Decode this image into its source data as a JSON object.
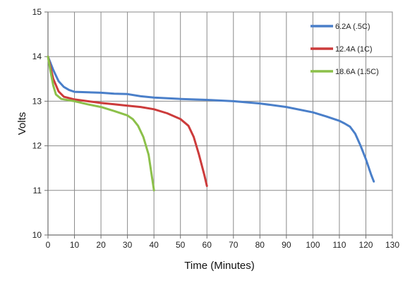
{
  "chart_data": {
    "type": "line",
    "title": "",
    "xlabel": "Time (Minutes)",
    "ylabel": "Volts",
    "xlim": [
      0,
      130
    ],
    "ylim": [
      10,
      15
    ],
    "x_ticks": [
      0,
      10,
      20,
      30,
      40,
      50,
      60,
      70,
      80,
      90,
      100,
      110,
      120,
      130
    ],
    "y_ticks": [
      10,
      11,
      12,
      13,
      14,
      15
    ],
    "grid": true,
    "legend_position": "top-right",
    "series": [
      {
        "name": "6.2A (.5C)",
        "color": "#4a7fc9",
        "points": [
          [
            0,
            14.0
          ],
          [
            2,
            13.7
          ],
          [
            4,
            13.45
          ],
          [
            6,
            13.32
          ],
          [
            8,
            13.25
          ],
          [
            10,
            13.21
          ],
          [
            15,
            13.2
          ],
          [
            20,
            13.19
          ],
          [
            25,
            13.17
          ],
          [
            30,
            13.16
          ],
          [
            35,
            13.11
          ],
          [
            40,
            13.08
          ],
          [
            50,
            13.05
          ],
          [
            60,
            13.03
          ],
          [
            70,
            13.0
          ],
          [
            80,
            12.95
          ],
          [
            90,
            12.87
          ],
          [
            100,
            12.75
          ],
          [
            105,
            12.66
          ],
          [
            110,
            12.56
          ],
          [
            112,
            12.5
          ],
          [
            114,
            12.43
          ],
          [
            116,
            12.27
          ],
          [
            118,
            12.0
          ],
          [
            120,
            11.7
          ],
          [
            122,
            11.35
          ],
          [
            123,
            11.2
          ]
        ]
      },
      {
        "name": "12.4A (1C)",
        "color": "#cc3b3b",
        "points": [
          [
            0,
            14.0
          ],
          [
            2,
            13.5
          ],
          [
            4,
            13.22
          ],
          [
            6,
            13.1
          ],
          [
            10,
            13.04
          ],
          [
            15,
            13.0
          ],
          [
            20,
            12.96
          ],
          [
            25,
            12.93
          ],
          [
            30,
            12.9
          ],
          [
            35,
            12.87
          ],
          [
            40,
            12.82
          ],
          [
            45,
            12.73
          ],
          [
            50,
            12.6
          ],
          [
            53,
            12.45
          ],
          [
            55,
            12.2
          ],
          [
            57,
            11.8
          ],
          [
            59,
            11.35
          ],
          [
            60,
            11.1
          ]
        ]
      },
      {
        "name": "18.6A (1.5C)",
        "color": "#8cc04a",
        "points": [
          [
            0,
            14.0
          ],
          [
            1,
            13.65
          ],
          [
            2,
            13.35
          ],
          [
            3,
            13.15
          ],
          [
            5,
            13.05
          ],
          [
            10,
            13.0
          ],
          [
            15,
            12.93
          ],
          [
            20,
            12.87
          ],
          [
            25,
            12.78
          ],
          [
            30,
            12.68
          ],
          [
            32,
            12.6
          ],
          [
            34,
            12.45
          ],
          [
            36,
            12.2
          ],
          [
            38,
            11.8
          ],
          [
            39,
            11.4
          ],
          [
            40,
            11.0
          ]
        ]
      }
    ]
  }
}
